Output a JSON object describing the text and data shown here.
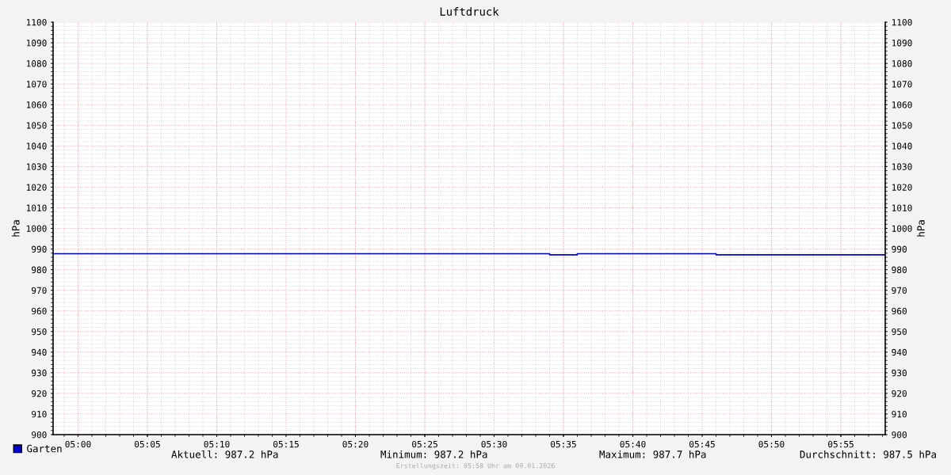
{
  "chart_data": {
    "type": "step",
    "title": "Luftdruck",
    "ylabel": "hPa",
    "y2label": "hPa",
    "x": [
      4.97,
      5.5667,
      5.6,
      5.7667,
      5.97
    ],
    "series": [
      {
        "name": "Garten",
        "color": "#0000cc",
        "values": [
          987.7,
          987.2,
          987.7,
          987.2,
          987.2
        ]
      }
    ],
    "xlim": [
      4.97,
      5.97
    ],
    "xticks": [
      {
        "value": 5.0,
        "label": "05:00"
      },
      {
        "value": 5.0833,
        "label": "05:05"
      },
      {
        "value": 5.1667,
        "label": "05:10"
      },
      {
        "value": 5.25,
        "label": "05:15"
      },
      {
        "value": 5.3333,
        "label": "05:20"
      },
      {
        "value": 5.4167,
        "label": "05:25"
      },
      {
        "value": 5.5,
        "label": "05:30"
      },
      {
        "value": 5.5833,
        "label": "05:35"
      },
      {
        "value": 5.6667,
        "label": "05:40"
      },
      {
        "value": 5.75,
        "label": "05:45"
      },
      {
        "value": 5.8333,
        "label": "05:50"
      },
      {
        "value": 5.9167,
        "label": "05:55"
      }
    ],
    "ylim": [
      900,
      1100
    ],
    "yticks": [
      900,
      910,
      920,
      930,
      940,
      950,
      960,
      970,
      980,
      990,
      1000,
      1010,
      1020,
      1030,
      1040,
      1050,
      1060,
      1070,
      1080,
      1090,
      1100
    ],
    "y2lim": [
      900,
      1100
    ],
    "y2ticks": [
      900,
      910,
      920,
      930,
      940,
      950,
      960,
      970,
      980,
      990,
      1000,
      1010,
      1020,
      1030,
      1040,
      1050,
      1060,
      1070,
      1080,
      1090,
      1100
    ],
    "grid": true,
    "legend": "bottom",
    "marker": "none",
    "line_style": "solid",
    "annotations": [
      "Aktuell: 987.2 hPa",
      "Minimum: 987.2 hPa",
      "Maximum: 987.7 hPa",
      "Durchschnitt: 987.5 hPa",
      "Erstellungszeit: 05:58 Uhr am 09.01.2026"
    ]
  }
}
